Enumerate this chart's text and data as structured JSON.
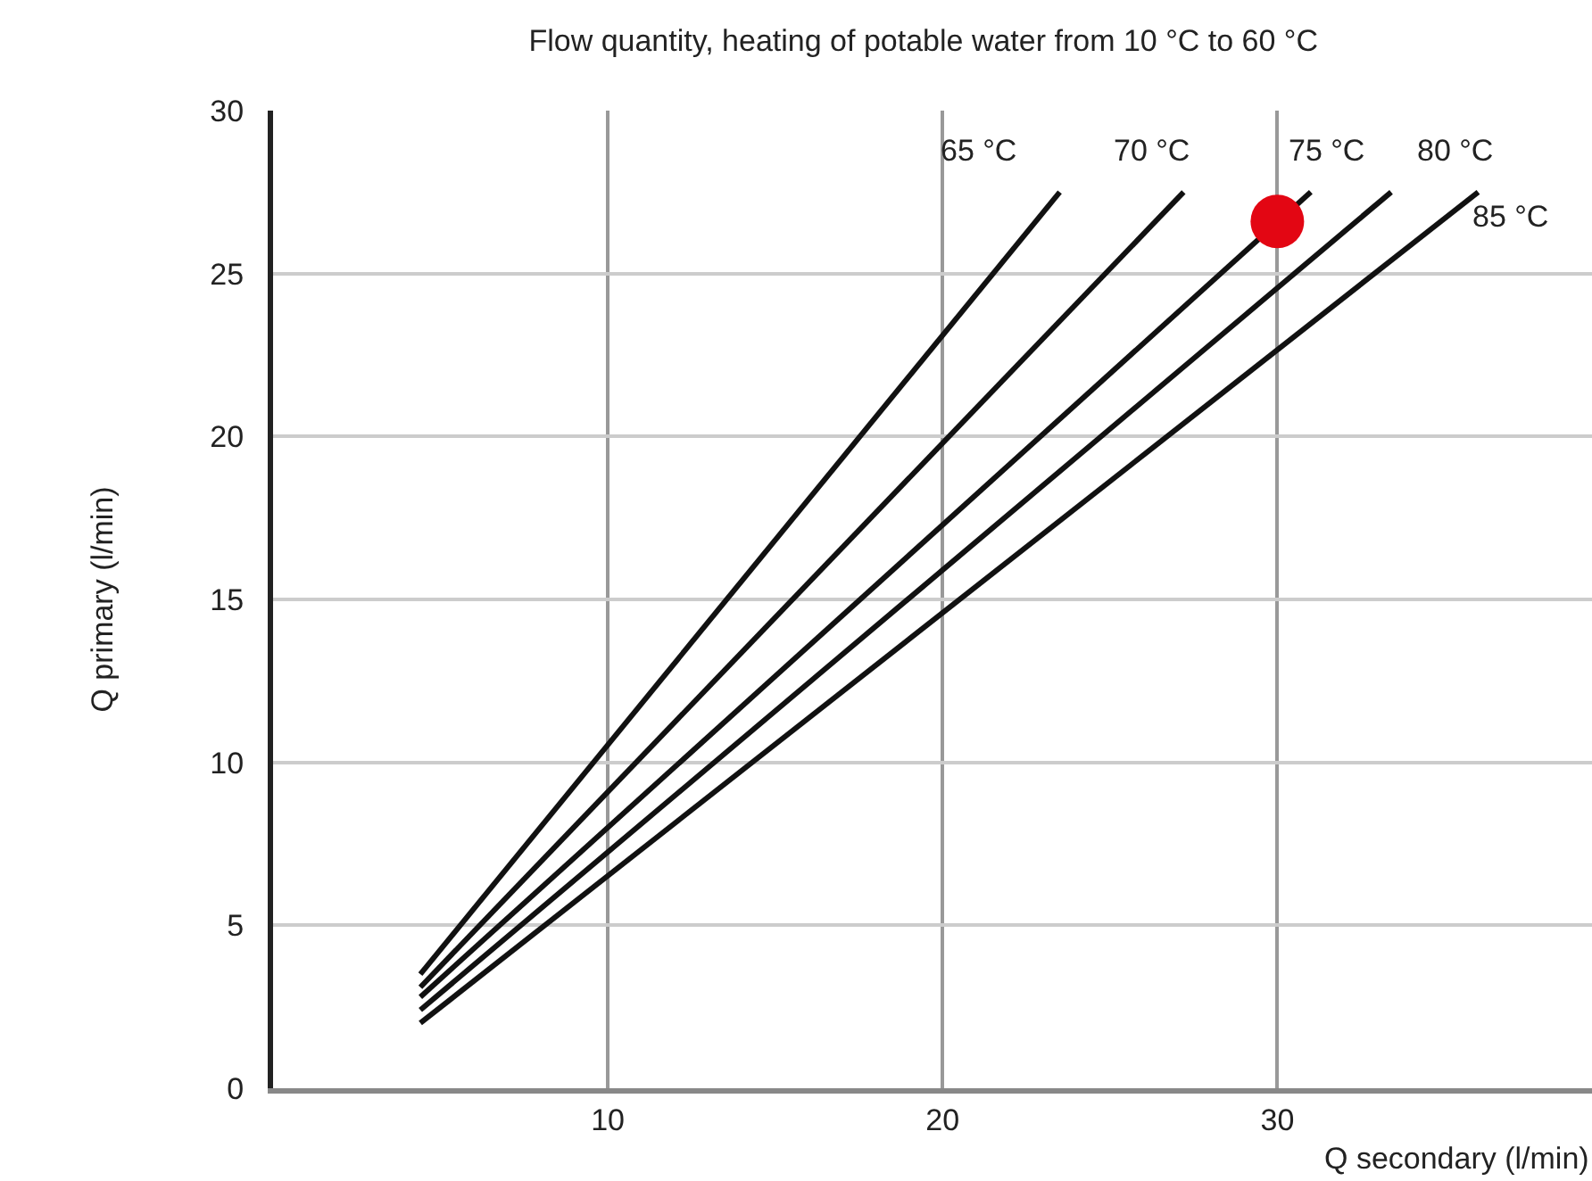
{
  "chart_data": {
    "type": "line",
    "title": "Flow quantity, heating of potable water from 10 °C to 60 °C",
    "xlabel": "Q secondary (l/min)",
    "ylabel": "Q primary (l/min)",
    "series": [
      {
        "name": "65 °C",
        "color": "#111111",
        "x": [
          4.4,
          23.5
        ],
        "values": [
          3.5,
          27.5
        ]
      },
      {
        "name": "70 °C",
        "color": "#111111",
        "x": [
          4.4,
          27.2
        ],
        "values": [
          3.1,
          27.5
        ]
      },
      {
        "name": "75 °C",
        "color": "#111111",
        "x": [
          4.4,
          31.0
        ],
        "values": [
          2.8,
          27.5
        ]
      },
      {
        "name": "80 °C",
        "color": "#111111",
        "x": [
          4.4,
          33.4
        ],
        "values": [
          2.4,
          27.5
        ]
      },
      {
        "name": "85 °C",
        "color": "#111111",
        "x": [
          4.4,
          36.0
        ],
        "values": [
          2.0,
          27.5
        ]
      },
      {
        "type": "scatter",
        "color": "#e30613",
        "marker": "circle",
        "x": [
          30.0
        ],
        "values": [
          26.6
        ]
      }
    ],
    "xlim": [
      0,
      39.4
    ],
    "xticks": [
      10,
      20,
      30
    ],
    "ylim": [
      0,
      30
    ],
    "yticks": [
      0,
      5,
      10,
      15,
      20,
      25,
      30
    ],
    "grid": true,
    "legend": false,
    "marker": "none",
    "line_style": "solid"
  }
}
